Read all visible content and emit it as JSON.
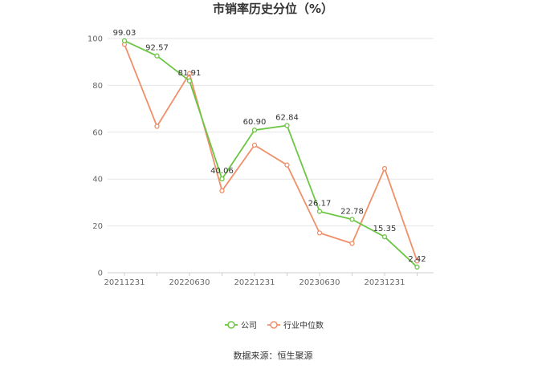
{
  "chart_data": {
    "type": "line",
    "title": "市销率历史分位（%）",
    "xlabel": "",
    "ylabel": "",
    "ylim": [
      0,
      100
    ],
    "yticks": [
      "0",
      "20",
      "40",
      "60",
      "80",
      "100"
    ],
    "x": [
      "20211231",
      "20220331",
      "20220630",
      "20220930",
      "20221231",
      "20230331",
      "20230630",
      "20230930",
      "20231231",
      "20240331"
    ],
    "xtick_labels": [
      "20211231",
      "20220630",
      "20221231",
      "20230630",
      "20231231"
    ],
    "grid": true,
    "legend": "bottom-center",
    "series": [
      {
        "name": "公司",
        "color": "#6cc644",
        "values": [
          99.03,
          92.57,
          81.91,
          40.06,
          60.9,
          62.84,
          26.17,
          22.78,
          15.35,
          2.42
        ],
        "labels": [
          "99.03",
          "92.57",
          "81.91",
          "40.06",
          "60.90",
          "62.84",
          "26.17",
          "22.78",
          "15.35",
          "2.42"
        ]
      },
      {
        "name": "行业中位数",
        "color": "#f0906a",
        "values": [
          97.5,
          62.5,
          85.0,
          35.0,
          54.5,
          46.0,
          17.0,
          12.5,
          44.5,
          5.0
        ]
      }
    ]
  },
  "source": "数据来源：恒生聚源"
}
